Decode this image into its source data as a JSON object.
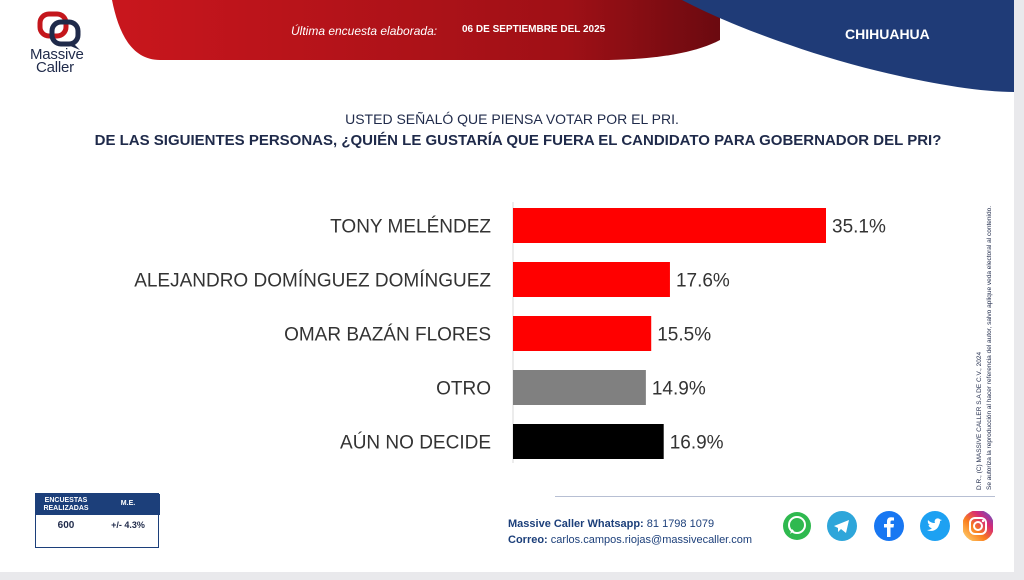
{
  "brand": {
    "name_line1": "Massive",
    "name_line2": "Caller"
  },
  "header": {
    "survey_label": "Última encuesta elaborada:",
    "survey_date": "06 DE SEPTIEMBRE DEL 2025",
    "state": "CHIHUAHUA"
  },
  "question": {
    "intro": "USTED SEÑALÓ QUE PIENSA VOTAR POR EL PRI.",
    "main": "DE LAS SIGUIENTES PERSONAS, ¿QUIÉN LE GUSTARÍA QUE FUERA EL CANDIDATO PARA GOBERNADOR DEL PRI?"
  },
  "chart_data": {
    "type": "bar",
    "orientation": "horizontal",
    "categories": [
      "TONY MELÉNDEZ",
      "ALEJANDRO DOMÍNGUEZ DOMÍNGUEZ",
      "OMAR BAZÁN FLORES",
      "OTRO",
      "AÚN NO DECIDE"
    ],
    "values": [
      35.1,
      17.6,
      15.5,
      14.9,
      16.9
    ],
    "value_labels": [
      "35.1%",
      "17.6%",
      "15.5%",
      "14.9%",
      "16.9%"
    ],
    "colors": [
      "#ff0000",
      "#ff0000",
      "#ff0000",
      "#808080",
      "#000000"
    ],
    "unit": "%",
    "xlim": [
      0,
      35.1
    ],
    "grid": false
  },
  "sample": {
    "col1_header_line1": "ENCUESTAS",
    "col1_header_line2": "REALIZADAS",
    "col2_header": "M.E.",
    "count": "600",
    "margin": "+/- 4.3%"
  },
  "contact": {
    "whatsapp_label": "Massive Caller Whatsapp:",
    "whatsapp_number": "81 1798 1079",
    "email_label": "Correo:",
    "email": "carlos.campos.riojas@massivecaller.com"
  },
  "side_note": {
    "line1": "D.R., (C) MASSIVE CALLER S.A DE C.V., 2024",
    "line2": "Se autoriza la reproducción al hacer referencia del autor, salvo aplique veda electoral al contenido."
  },
  "social_icons": [
    "whatsapp-icon",
    "telegram-icon",
    "facebook-icon",
    "twitter-icon",
    "instagram-icon"
  ],
  "colors": {
    "navy": "#1c3f7a",
    "red": "#c4161c",
    "bar_red": "#ff0000"
  }
}
